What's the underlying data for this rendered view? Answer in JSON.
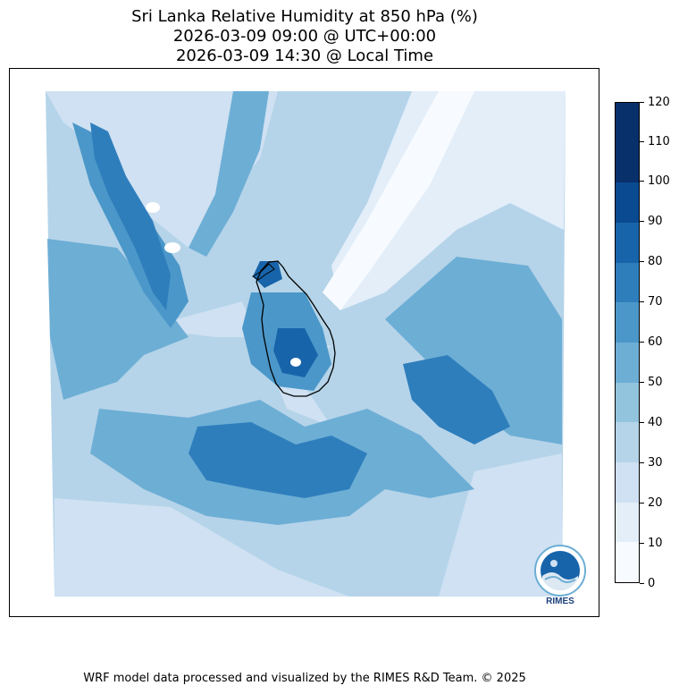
{
  "title": {
    "line1": "Sri Lanka Relative Humidity at 850 hPa (%)",
    "line2": "2026-03-09 09:00 @ UTC+00:00",
    "line3": "2026-03-09 14:30 @ Local Time"
  },
  "colorbar": {
    "ticks": [
      "0",
      "10",
      "20",
      "30",
      "40",
      "50",
      "60",
      "70",
      "80",
      "90",
      "100",
      "110",
      "120"
    ],
    "colors": [
      "#f7fbff",
      "#e3eef9",
      "#cfe1f2",
      "#b5d4e9",
      "#93c4de",
      "#6daed5",
      "#4b97c9",
      "#2f7ebc",
      "#1864aa",
      "#0a4a90",
      "#08306b",
      "#08306b"
    ]
  },
  "logo": {
    "text": "RIMES",
    "icon": "rimes-logo-icon"
  },
  "footer": {
    "credit": "WRF model data processed and visualized by the RIMES R&D Team. © 2025"
  }
}
